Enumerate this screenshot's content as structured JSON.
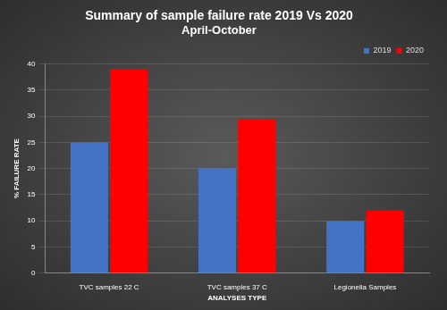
{
  "chart_data": {
    "type": "bar",
    "title": "Summary of sample failure rate 2019 Vs 2020",
    "subtitle": "April-October",
    "x_label": "ANALYSES TYPE",
    "y_label": "% FAILURE RATE",
    "categories": [
      "TVC samples 22 C",
      "TVC samples 37 C",
      "Legionella Samples"
    ],
    "series": [
      {
        "name": "2019",
        "color": "#4472c4",
        "values": [
          25,
          20,
          10
        ]
      },
      {
        "name": "2020",
        "color": "#ff0000",
        "values": [
          39,
          29.5,
          12
        ]
      }
    ],
    "ylim": [
      0,
      40
    ],
    "yticks": [
      0,
      5,
      10,
      15,
      20,
      25,
      30,
      35,
      40
    ],
    "grid": true,
    "legend": "upper right"
  }
}
